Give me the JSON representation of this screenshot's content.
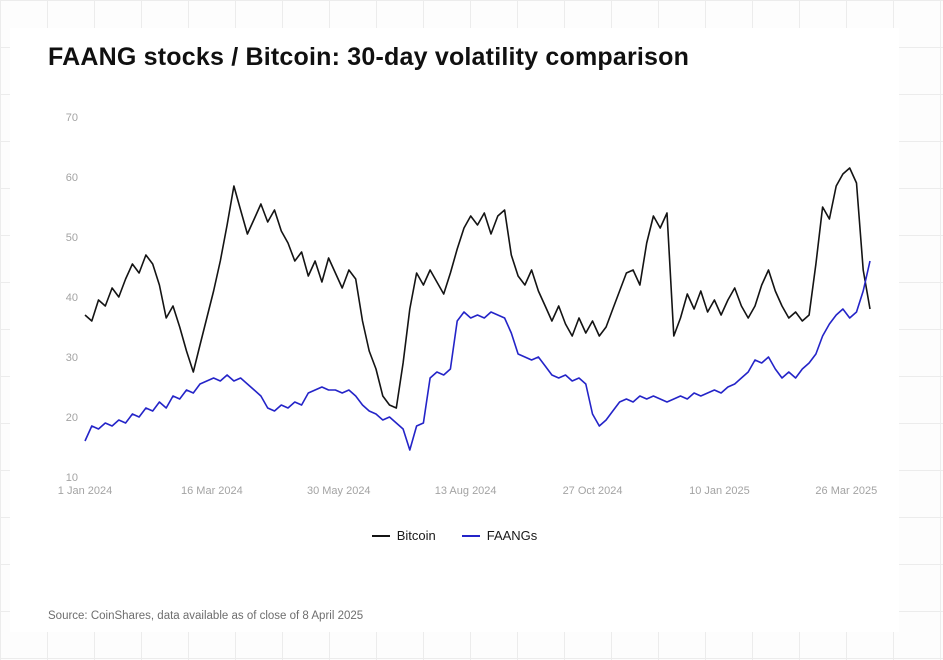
{
  "page": {
    "title": "FAANG stocks / Bitcoin: 30-day volatility comparison",
    "source": "Source: CoinShares, data available as of close of 8 April 2025"
  },
  "chart_data": {
    "type": "line",
    "title": "FAANG stocks / Bitcoin: 30-day volatility comparison",
    "xlabel": "",
    "ylabel": "",
    "ylim": [
      10,
      70
    ],
    "y_ticks": [
      10,
      20,
      30,
      40,
      50,
      60,
      70
    ],
    "x_tick_labels": [
      "1 Jan 2024",
      "16 Mar 2024",
      "30 May 2024",
      "13 Aug 2024",
      "27 Oct 2024",
      "10 Jan 2025",
      "26 Mar 2025"
    ],
    "x_tick_positions_days": [
      0,
      75,
      150,
      225,
      300,
      375,
      450
    ],
    "x_range_days": [
      0,
      464
    ],
    "x_sample_interval_days": 4,
    "grid": false,
    "legend_position": "bottom-center",
    "series": [
      {
        "name": "Bitcoin",
        "color": "#141414",
        "values": [
          37,
          36,
          39.5,
          38.5,
          41.5,
          40,
          43,
          45.5,
          44,
          47,
          45.5,
          42,
          36.5,
          38.5,
          35,
          31,
          27.5,
          32,
          36.5,
          41,
          46,
          52,
          58.5,
          54.5,
          50.5,
          53,
          55.5,
          52.5,
          54.5,
          51,
          49,
          46,
          47.5,
          43.5,
          46,
          42.5,
          46.5,
          44,
          41.5,
          44.5,
          43,
          36,
          31,
          28,
          23.5,
          22,
          21.5,
          29,
          38,
          44,
          42,
          44.5,
          42.5,
          40.5,
          44,
          48,
          51.5,
          53.5,
          52,
          54,
          50.5,
          53.5,
          54.5,
          47,
          43.5,
          42,
          44.5,
          41,
          38.5,
          36,
          38.5,
          35.5,
          33.5,
          36.5,
          34,
          36,
          33.5,
          35,
          38,
          41,
          44,
          44.5,
          42,
          49,
          53.5,
          51.5,
          54,
          33.5,
          36.5,
          40.5,
          38,
          41,
          37.5,
          39.5,
          37,
          39.5,
          41.5,
          38.5,
          36.5,
          38.5,
          42,
          44.5,
          41,
          38.5,
          36.5,
          37.5,
          36,
          37,
          45.5,
          55,
          53,
          58.5,
          60.5,
          61.5,
          59,
          44.5,
          38
        ]
      },
      {
        "name": "FAANGs",
        "color": "#2424c8",
        "values": [
          16,
          18.5,
          18,
          19,
          18.5,
          19.5,
          19,
          20.5,
          20,
          21.5,
          21,
          22.5,
          21.5,
          23.5,
          23,
          24.5,
          24,
          25.5,
          26,
          26.5,
          26,
          27,
          26,
          26.5,
          25.5,
          24.5,
          23.5,
          21.5,
          21,
          22,
          21.5,
          22.5,
          22,
          24,
          24.5,
          25,
          24.5,
          24.5,
          24,
          24.5,
          23.5,
          22,
          21,
          20.5,
          19.5,
          20,
          19,
          18,
          14.5,
          18.5,
          19,
          26.5,
          27.5,
          27,
          28,
          36,
          37.5,
          36.5,
          37,
          36.5,
          37.5,
          37,
          36.5,
          34,
          30.5,
          30,
          29.5,
          30,
          28.5,
          27,
          26.5,
          27,
          26,
          26.5,
          25.5,
          20.5,
          18.5,
          19.5,
          21,
          22.5,
          23,
          22.5,
          23.5,
          23,
          23.5,
          23,
          22.5,
          23,
          23.5,
          23,
          24,
          23.5,
          24,
          24.5,
          24,
          25,
          25.5,
          26.5,
          27.5,
          29.5,
          29,
          30,
          28,
          26.5,
          27.5,
          26.5,
          28,
          29,
          30.5,
          33.5,
          35.5,
          37,
          38,
          36.5,
          37.5,
          41,
          46
        ]
      }
    ]
  }
}
